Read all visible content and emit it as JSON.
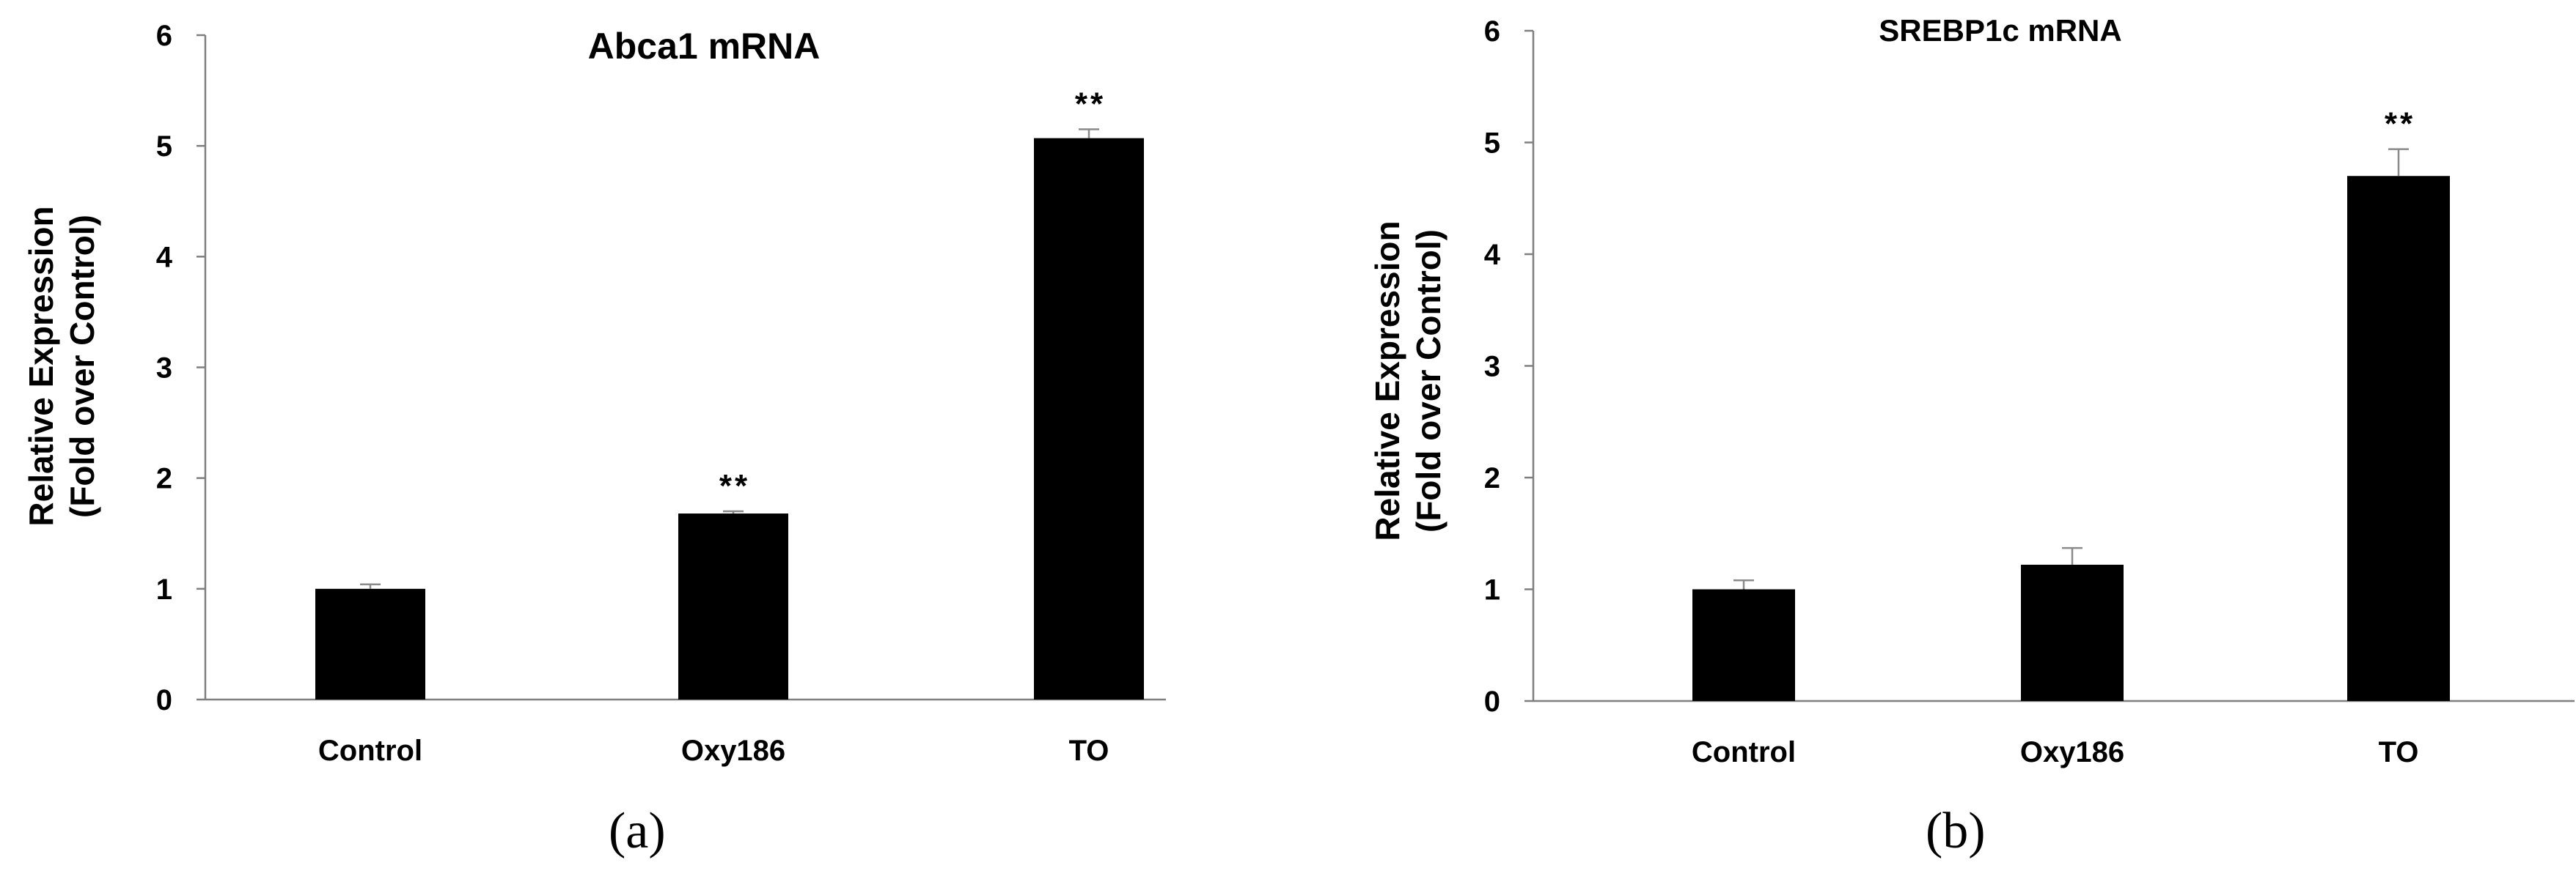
{
  "chart_data": [
    {
      "type": "bar",
      "panel_label": "(a)",
      "title": "Abca1 mRNA",
      "ylabel": "Relative Expression\n(Fold over Control)",
      "xlabel": "",
      "categories": [
        "Control",
        "Oxy186",
        "TO"
      ],
      "values": [
        1.0,
        1.68,
        5.07
      ],
      "errors": [
        0.04,
        0.02,
        0.08
      ],
      "significance": [
        "",
        "**",
        "**"
      ],
      "ylim": [
        0,
        6
      ],
      "yticks": [
        0,
        1,
        2,
        3,
        4,
        5,
        6
      ],
      "grid": false,
      "bar_color": "#000000"
    },
    {
      "type": "bar",
      "panel_label": "(b)",
      "title": "SREBP1c mRNA",
      "ylabel": "Relative Expression\n(Fold over Control)",
      "xlabel": "",
      "categories": [
        "Control",
        "Oxy186",
        "TO"
      ],
      "values": [
        1.0,
        1.22,
        4.7
      ],
      "errors": [
        0.08,
        0.15,
        0.24
      ],
      "significance": [
        "",
        "",
        "**"
      ],
      "ylim": [
        0,
        6
      ],
      "yticks": [
        0,
        1,
        2,
        3,
        4,
        5,
        6
      ],
      "grid": false,
      "bar_color": "#000000"
    }
  ]
}
